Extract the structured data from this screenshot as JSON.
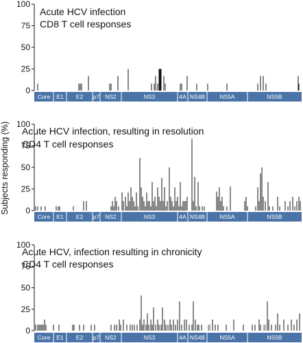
{
  "y_axis_label": "Subjects responding (%)",
  "colors": {
    "genome_bar": "#4a74a8",
    "genome_divider": "#ffffff",
    "response_bar": "#111111",
    "response_bar_grey": "#999999"
  },
  "chart_data": [
    {
      "type": "bar",
      "title_lines": [
        "Acute HCV infection",
        "CD8 T cell responses"
      ],
      "ylim": [
        0,
        100
      ],
      "yticks": [
        0,
        25,
        50,
        75,
        100
      ],
      "genome_regions": [
        "Core",
        "E1",
        "E2",
        "p7",
        "NS2",
        "NS3",
        "4A",
        "NS4B",
        "NS5A",
        "NS5B"
      ],
      "x_range": [
        0,
        390
      ],
      "bars": [
        {
          "x": 5,
          "y": 8
        },
        {
          "x": 65,
          "y": 8
        },
        {
          "x": 67,
          "y": 8
        },
        {
          "x": 69,
          "y": 8
        },
        {
          "x": 79,
          "y": 17
        },
        {
          "x": 110,
          "y": 8
        },
        {
          "x": 112,
          "y": 8
        },
        {
          "x": 122,
          "y": 17
        },
        {
          "x": 137,
          "y": 25
        },
        {
          "x": 171,
          "y": 8
        },
        {
          "x": 175,
          "y": 8
        },
        {
          "x": 177,
          "y": 17
        },
        {
          "x": 180,
          "y": 8
        },
        {
          "x": 182,
          "y": 25
        },
        {
          "x": 183,
          "y": 25
        },
        {
          "x": 184,
          "y": 25
        },
        {
          "x": 185,
          "y": 25
        },
        {
          "x": 189,
          "y": 17
        },
        {
          "x": 191,
          "y": 8
        },
        {
          "x": 213,
          "y": 8
        },
        {
          "x": 215,
          "y": 8
        },
        {
          "x": 223,
          "y": 17
        },
        {
          "x": 237,
          "y": 8
        },
        {
          "x": 253,
          "y": 8
        },
        {
          "x": 281,
          "y": 8
        },
        {
          "x": 326,
          "y": 8
        },
        {
          "x": 330,
          "y": 17
        },
        {
          "x": 334,
          "y": 17
        },
        {
          "x": 338,
          "y": 8
        },
        {
          "x": 385,
          "y": 17
        },
        {
          "x": 386,
          "y": 8
        }
      ]
    },
    {
      "type": "bar",
      "title_lines": [
        "Acute HCV infection, resulting in resolution",
        "CD4 T cell responses"
      ],
      "ylim": [
        0,
        100
      ],
      "yticks": [
        0,
        25,
        50,
        75,
        100
      ],
      "genome_regions": [
        "Core",
        "E1",
        "E2",
        "p7",
        "NS2",
        "NS3",
        "4A",
        "NS4B",
        "NS5A",
        "NS5B"
      ],
      "x_range": [
        0,
        390
      ],
      "bars": [
        {
          "x": 2,
          "y": 5
        },
        {
          "x": 5,
          "y": 5
        },
        {
          "x": 10,
          "y": 5
        },
        {
          "x": 16,
          "y": 5
        },
        {
          "x": 32,
          "y": 5
        },
        {
          "x": 35,
          "y": 5
        },
        {
          "x": 37,
          "y": 5
        },
        {
          "x": 57,
          "y": 5
        },
        {
          "x": 72,
          "y": 11
        },
        {
          "x": 76,
          "y": 11
        },
        {
          "x": 112,
          "y": 5
        },
        {
          "x": 114,
          "y": 11
        },
        {
          "x": 116,
          "y": 5
        },
        {
          "x": 118,
          "y": 16
        },
        {
          "x": 120,
          "y": 11
        },
        {
          "x": 123,
          "y": 5
        },
        {
          "x": 128,
          "y": 21
        },
        {
          "x": 130,
          "y": 11
        },
        {
          "x": 133,
          "y": 16
        },
        {
          "x": 135,
          "y": 5
        },
        {
          "x": 137,
          "y": 21
        },
        {
          "x": 139,
          "y": 11
        },
        {
          "x": 141,
          "y": 27
        },
        {
          "x": 143,
          "y": 16
        },
        {
          "x": 145,
          "y": 11
        },
        {
          "x": 147,
          "y": 5
        },
        {
          "x": 149,
          "y": 21
        },
        {
          "x": 151,
          "y": 5
        },
        {
          "x": 154,
          "y": 61
        },
        {
          "x": 156,
          "y": 27
        },
        {
          "x": 158,
          "y": 16
        },
        {
          "x": 160,
          "y": 11
        },
        {
          "x": 162,
          "y": 5
        },
        {
          "x": 164,
          "y": 21
        },
        {
          "x": 166,
          "y": 11
        },
        {
          "x": 168,
          "y": 11
        },
        {
          "x": 170,
          "y": 5
        },
        {
          "x": 172,
          "y": 33
        },
        {
          "x": 174,
          "y": 11
        },
        {
          "x": 176,
          "y": 16
        },
        {
          "x": 178,
          "y": 5
        },
        {
          "x": 180,
          "y": 27
        },
        {
          "x": 182,
          "y": 16
        },
        {
          "x": 184,
          "y": 11
        },
        {
          "x": 186,
          "y": 38
        },
        {
          "x": 188,
          "y": 11
        },
        {
          "x": 190,
          "y": 27
        },
        {
          "x": 192,
          "y": 5
        },
        {
          "x": 194,
          "y": 11
        },
        {
          "x": 197,
          "y": 50
        },
        {
          "x": 199,
          "y": 16
        },
        {
          "x": 201,
          "y": 11
        },
        {
          "x": 203,
          "y": 5
        },
        {
          "x": 205,
          "y": 27
        },
        {
          "x": 207,
          "y": 11
        },
        {
          "x": 209,
          "y": 16
        },
        {
          "x": 211,
          "y": 5
        },
        {
          "x": 213,
          "y": 33
        },
        {
          "x": 215,
          "y": 5
        },
        {
          "x": 217,
          "y": 11
        },
        {
          "x": 219,
          "y": 11
        },
        {
          "x": 221,
          "y": 11
        },
        {
          "x": 223,
          "y": 16
        },
        {
          "x": 230,
          "y": 83
        },
        {
          "x": 232,
          "y": 11
        },
        {
          "x": 234,
          "y": 39
        },
        {
          "x": 236,
          "y": 5
        },
        {
          "x": 239,
          "y": 33
        },
        {
          "x": 241,
          "y": 5
        },
        {
          "x": 245,
          "y": 5
        },
        {
          "x": 248,
          "y": 5
        },
        {
          "x": 266,
          "y": 22
        },
        {
          "x": 268,
          "y": 16
        },
        {
          "x": 270,
          "y": 27
        },
        {
          "x": 272,
          "y": 11
        },
        {
          "x": 274,
          "y": 16
        },
        {
          "x": 276,
          "y": 5
        },
        {
          "x": 281,
          "y": 5
        },
        {
          "x": 286,
          "y": 28
        },
        {
          "x": 307,
          "y": 11
        },
        {
          "x": 309,
          "y": 16
        },
        {
          "x": 311,
          "y": 5
        },
        {
          "x": 323,
          "y": 5
        },
        {
          "x": 326,
          "y": 27
        },
        {
          "x": 328,
          "y": 11
        },
        {
          "x": 330,
          "y": 43
        },
        {
          "x": 332,
          "y": 50
        },
        {
          "x": 334,
          "y": 16
        },
        {
          "x": 337,
          "y": 11
        },
        {
          "x": 341,
          "y": 33
        },
        {
          "x": 343,
          "y": 5
        },
        {
          "x": 348,
          "y": 5
        },
        {
          "x": 355,
          "y": 16
        },
        {
          "x": 358,
          "y": 5
        },
        {
          "x": 366,
          "y": 11
        },
        {
          "x": 370,
          "y": 5
        },
        {
          "x": 373,
          "y": 11
        },
        {
          "x": 377,
          "y": 16
        },
        {
          "x": 380,
          "y": 5
        },
        {
          "x": 383,
          "y": 11
        },
        {
          "x": 386,
          "y": 16
        },
        {
          "x": 388,
          "y": 11
        }
      ]
    },
    {
      "type": "bar",
      "title_lines": [
        "Acute HCV, infection resulting in chronicity",
        "CD4 T cell responses"
      ],
      "ylim": [
        0,
        100
      ],
      "yticks": [
        0,
        25,
        50,
        75,
        100
      ],
      "genome_regions": [
        "Core",
        "E1",
        "E2",
        "p7",
        "NS2",
        "NS3",
        "4A",
        "NS4B",
        "NS5A",
        "NS5B"
      ],
      "x_range": [
        0,
        390
      ],
      "bars": [
        {
          "x": 2,
          "y": 7
        },
        {
          "x": 5,
          "y": 7
        },
        {
          "x": 7,
          "y": 7
        },
        {
          "x": 9,
          "y": 7
        },
        {
          "x": 11,
          "y": 7
        },
        {
          "x": 13,
          "y": 7
        },
        {
          "x": 15,
          "y": 13
        },
        {
          "x": 17,
          "y": 7
        },
        {
          "x": 28,
          "y": 7
        },
        {
          "x": 36,
          "y": 7
        },
        {
          "x": 56,
          "y": 7
        },
        {
          "x": 58,
          "y": 7
        },
        {
          "x": 66,
          "y": 7
        },
        {
          "x": 72,
          "y": 7
        },
        {
          "x": 83,
          "y": 7
        },
        {
          "x": 88,
          "y": 7
        },
        {
          "x": 112,
          "y": 7
        },
        {
          "x": 117,
          "y": 7
        },
        {
          "x": 120,
          "y": 7
        },
        {
          "x": 124,
          "y": 13
        },
        {
          "x": 126,
          "y": 7
        },
        {
          "x": 130,
          "y": 13
        },
        {
          "x": 135,
          "y": 7
        },
        {
          "x": 140,
          "y": 7
        },
        {
          "x": 143,
          "y": 7
        },
        {
          "x": 146,
          "y": 7
        },
        {
          "x": 150,
          "y": 7
        },
        {
          "x": 154,
          "y": 13
        },
        {
          "x": 156,
          "y": 41
        },
        {
          "x": 158,
          "y": 7
        },
        {
          "x": 160,
          "y": 13
        },
        {
          "x": 163,
          "y": 7
        },
        {
          "x": 165,
          "y": 20
        },
        {
          "x": 167,
          "y": 7
        },
        {
          "x": 170,
          "y": 13
        },
        {
          "x": 172,
          "y": 7
        },
        {
          "x": 174,
          "y": 27
        },
        {
          "x": 177,
          "y": 7
        },
        {
          "x": 180,
          "y": 13
        },
        {
          "x": 182,
          "y": 7
        },
        {
          "x": 185,
          "y": 7
        },
        {
          "x": 187,
          "y": 27
        },
        {
          "x": 190,
          "y": 13
        },
        {
          "x": 192,
          "y": 7
        },
        {
          "x": 195,
          "y": 7
        },
        {
          "x": 198,
          "y": 13
        },
        {
          "x": 200,
          "y": 7
        },
        {
          "x": 203,
          "y": 13
        },
        {
          "x": 206,
          "y": 7
        },
        {
          "x": 209,
          "y": 13
        },
        {
          "x": 212,
          "y": 34
        },
        {
          "x": 215,
          "y": 7
        },
        {
          "x": 219,
          "y": 13
        },
        {
          "x": 222,
          "y": 13
        },
        {
          "x": 226,
          "y": 7
        },
        {
          "x": 230,
          "y": 7
        },
        {
          "x": 232,
          "y": 34
        },
        {
          "x": 235,
          "y": 13
        },
        {
          "x": 238,
          "y": 7
        },
        {
          "x": 240,
          "y": 7
        },
        {
          "x": 244,
          "y": 7
        },
        {
          "x": 256,
          "y": 7
        },
        {
          "x": 260,
          "y": 13
        },
        {
          "x": 264,
          "y": 7
        },
        {
          "x": 268,
          "y": 7
        },
        {
          "x": 280,
          "y": 7
        },
        {
          "x": 291,
          "y": 13
        },
        {
          "x": 305,
          "y": 7
        },
        {
          "x": 318,
          "y": 7
        },
        {
          "x": 322,
          "y": 7
        },
        {
          "x": 328,
          "y": 13
        },
        {
          "x": 330,
          "y": 7
        },
        {
          "x": 340,
          "y": 34
        },
        {
          "x": 342,
          "y": 13
        },
        {
          "x": 346,
          "y": 7
        },
        {
          "x": 352,
          "y": 7
        },
        {
          "x": 355,
          "y": 20
        },
        {
          "x": 358,
          "y": 7
        },
        {
          "x": 364,
          "y": 13
        },
        {
          "x": 370,
          "y": 7
        },
        {
          "x": 375,
          "y": 13
        },
        {
          "x": 379,
          "y": 7
        },
        {
          "x": 383,
          "y": 13
        },
        {
          "x": 387,
          "y": 20
        }
      ],
      "grey_bars": [
        {
          "x": 254,
          "y": 7
        },
        {
          "x": 256,
          "y": 7
        },
        {
          "x": 335,
          "y": 7
        },
        {
          "x": 337,
          "y": 7
        }
      ]
    }
  ]
}
